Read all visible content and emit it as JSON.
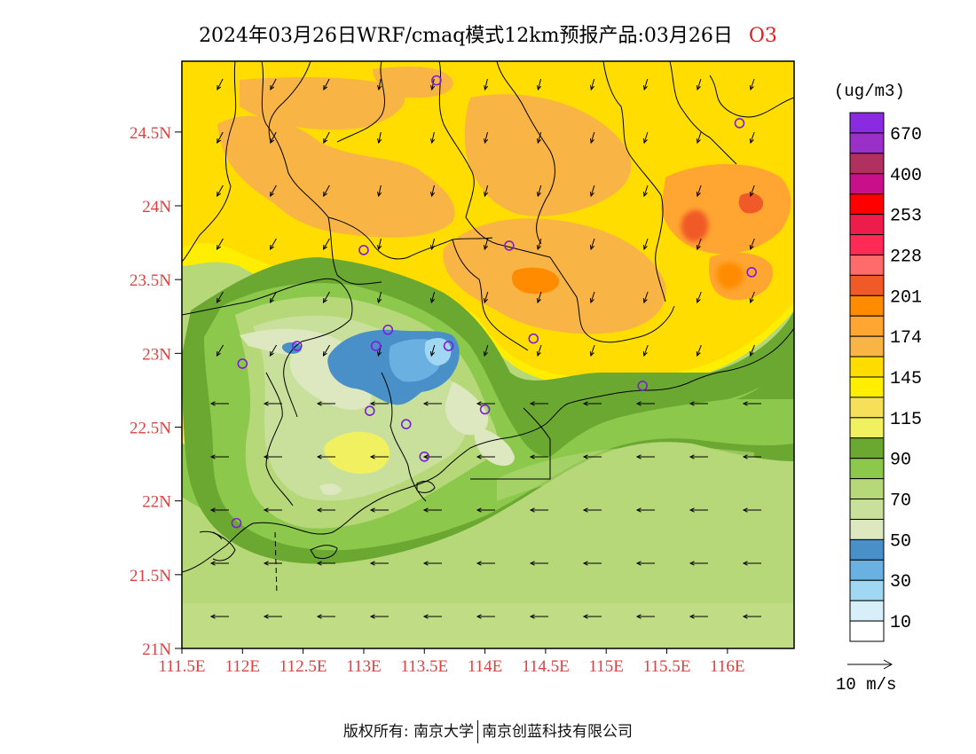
{
  "title": {
    "main": "2024年03月26日WRF/cmaq模式12km预报产品:03月26日",
    "species": "O3"
  },
  "axes": {
    "y_ticks": [
      "24.5N",
      "24N",
      "23.5N",
      "23N",
      "22.5N",
      "22N",
      "21.5N",
      "21N"
    ],
    "x_ticks": [
      "111.5E",
      "112E",
      "112.5E",
      "113E",
      "113.5E",
      "114E",
      "114.5E",
      "115E",
      "115.5E",
      "116E"
    ],
    "lon_range": [
      111.5,
      116.55
    ],
    "lat_range": [
      21,
      24.98
    ]
  },
  "colorbar": {
    "unit": "(ug/m3)",
    "labels": [
      "670",
      "400",
      "253",
      "228",
      "201",
      "174",
      "145",
      "115",
      "90",
      "70",
      "50",
      "30",
      "10"
    ],
    "colors": [
      "#8a2be2",
      "#9b30c8",
      "#b03060",
      "#c8108a",
      "#ff0000",
      "#ee1c4a",
      "#ff2a55",
      "#ff6a6a",
      "#f05a28",
      "#ff8c00",
      "#ffa532",
      "#f8b445",
      "#ffdd00",
      "#ffee00",
      "#f6e05a",
      "#f0f060",
      "#6aa832",
      "#8cc84b",
      "#b6d878",
      "#c8e09b",
      "#dde8c0",
      "#4a90c8",
      "#6ab0e0",
      "#a0d8f4",
      "#d6eff8",
      "#ffffff"
    ]
  },
  "wind": {
    "legend_label": "10 m/s"
  },
  "stations": [
    {
      "lon": 113.6,
      "lat": 24.85
    },
    {
      "lon": 116.1,
      "lat": 24.56
    },
    {
      "lon": 113.0,
      "lat": 23.7
    },
    {
      "lon": 114.2,
      "lat": 23.73
    },
    {
      "lon": 116.2,
      "lat": 23.55
    },
    {
      "lon": 112.45,
      "lat": 23.05
    },
    {
      "lon": 113.1,
      "lat": 23.05
    },
    {
      "lon": 113.2,
      "lat": 23.16
    },
    {
      "lon": 113.7,
      "lat": 23.05
    },
    {
      "lon": 114.4,
      "lat": 23.1
    },
    {
      "lon": 112.0,
      "lat": 22.93
    },
    {
      "lon": 115.3,
      "lat": 22.78
    },
    {
      "lon": 113.05,
      "lat": 22.61
    },
    {
      "lon": 113.35,
      "lat": 22.52
    },
    {
      "lon": 114.0,
      "lat": 22.62
    },
    {
      "lon": 113.5,
      "lat": 22.3
    },
    {
      "lon": 111.95,
      "lat": 21.85
    }
  ],
  "footer": {
    "left": "版权所有: 南京大学",
    "right": "南京创蓝科技有限公司"
  }
}
